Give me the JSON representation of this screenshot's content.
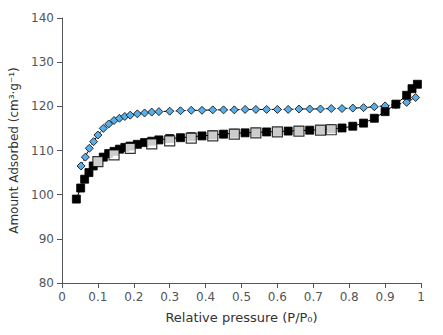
{
  "chart_data": {
    "type": "line",
    "xlabel": "Relative pressure (P/P₀)",
    "ylabel": "Amount Adsorbed (cm³·g⁻¹)",
    "xlim": [
      0,
      1.0
    ],
    "ylim": [
      80,
      140
    ],
    "xticks": [
      0,
      0.1,
      0.2,
      0.3,
      0.4,
      0.5,
      0.6,
      0.7,
      0.8,
      0.9,
      1
    ],
    "yticks": [
      80,
      90,
      100,
      110,
      120,
      130,
      140
    ],
    "grid": false,
    "series": [
      {
        "type": "line",
        "color": "#5aaee8",
        "marker": "diamond",
        "line_style": "dashed",
        "x": [
          0.053,
          0.065,
          0.076,
          0.088,
          0.1,
          0.115,
          0.13,
          0.145,
          0.16,
          0.175,
          0.19,
          0.21,
          0.23,
          0.25,
          0.27,
          0.3,
          0.33,
          0.36,
          0.39,
          0.42,
          0.45,
          0.48,
          0.51,
          0.54,
          0.57,
          0.6,
          0.63,
          0.66,
          0.69,
          0.72,
          0.75,
          0.78,
          0.81,
          0.84,
          0.87,
          0.9,
          0.93,
          0.96,
          0.985
        ],
        "values": [
          106.5,
          108.5,
          110.5,
          112.0,
          113.5,
          115.0,
          116.0,
          116.8,
          117.3,
          117.7,
          118.0,
          118.3,
          118.5,
          118.7,
          118.8,
          118.9,
          119.0,
          119.1,
          119.1,
          119.2,
          119.2,
          119.2,
          119.3,
          119.3,
          119.3,
          119.3,
          119.3,
          119.4,
          119.4,
          119.4,
          119.5,
          119.5,
          119.6,
          119.7,
          119.9,
          120.1,
          120.4,
          120.9,
          122.0
        ]
      },
      {
        "type": "line",
        "color": "#000000",
        "marker": "square",
        "line_style": "solid",
        "x": [
          0.04,
          0.052,
          0.063,
          0.075,
          0.087,
          0.1,
          0.115,
          0.13,
          0.145,
          0.16,
          0.175,
          0.19,
          0.21,
          0.23,
          0.25,
          0.27,
          0.3,
          0.33,
          0.36,
          0.39,
          0.42,
          0.45,
          0.48,
          0.51,
          0.54,
          0.57,
          0.6,
          0.63,
          0.66,
          0.69,
          0.72,
          0.75,
          0.78,
          0.81,
          0.84,
          0.87,
          0.9,
          0.93,
          0.96,
          0.975,
          0.99
        ],
        "values": [
          99.0,
          101.5,
          103.5,
          105.0,
          106.5,
          107.5,
          108.5,
          109.3,
          109.8,
          110.3,
          110.7,
          111.0,
          111.4,
          111.8,
          112.1,
          112.4,
          112.7,
          112.9,
          113.1,
          113.3,
          113.5,
          113.7,
          113.9,
          114.0,
          114.1,
          114.2,
          114.3,
          114.4,
          114.5,
          114.6,
          114.7,
          114.9,
          115.1,
          115.5,
          116.2,
          117.3,
          118.8,
          120.5,
          122.5,
          124.0,
          125.0
        ]
      },
      {
        "type": "scatter",
        "color": "#000000",
        "marker": "open-square",
        "x": [
          0.1,
          0.145,
          0.19,
          0.25,
          0.3,
          0.36,
          0.42,
          0.48,
          0.54,
          0.6,
          0.66,
          0.72,
          0.75
        ],
        "values": [
          107.5,
          109.0,
          110.5,
          111.5,
          112.2,
          112.8,
          113.3,
          113.7,
          114.0,
          114.2,
          114.4,
          114.6,
          114.7
        ]
      }
    ]
  }
}
